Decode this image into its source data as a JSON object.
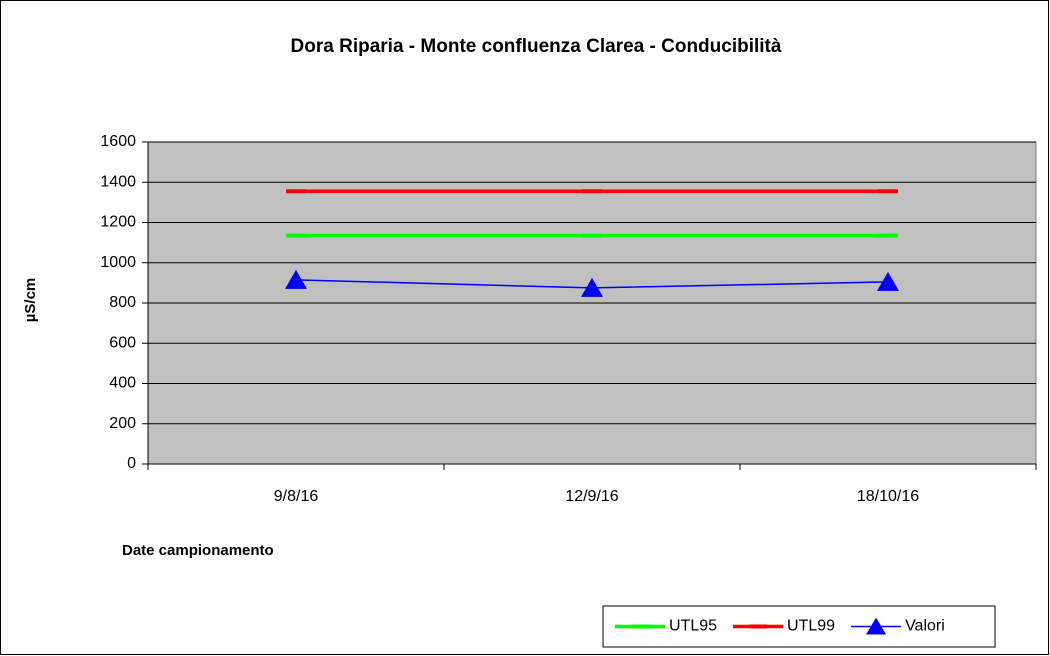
{
  "chart_data": {
    "type": "line",
    "title": "Dora Riparia - Monte confluenza Clarea - Conducibilità",
    "y_label": "µS/cm",
    "x_label": "Date campionamento",
    "categories": [
      "9/8/16",
      "12/9/16",
      "18/10/16"
    ],
    "series": [
      {
        "name": "UTL95",
        "color": "#00ff00",
        "marker": "dash",
        "values": [
          1135,
          1135,
          1135
        ]
      },
      {
        "name": "UTL99",
        "color": "#ff0000",
        "marker": "dash",
        "values": [
          1355,
          1355,
          1355
        ]
      },
      {
        "name": "Valori",
        "color": "#0000ff",
        "marker": "triangle",
        "values": [
          915,
          875,
          905
        ]
      }
    ],
    "ylim": [
      0,
      1600
    ],
    "yticks": [
      0,
      200,
      400,
      600,
      800,
      1000,
      1200,
      1400,
      1600
    ],
    "grid": true,
    "legend": "bottom-right"
  }
}
